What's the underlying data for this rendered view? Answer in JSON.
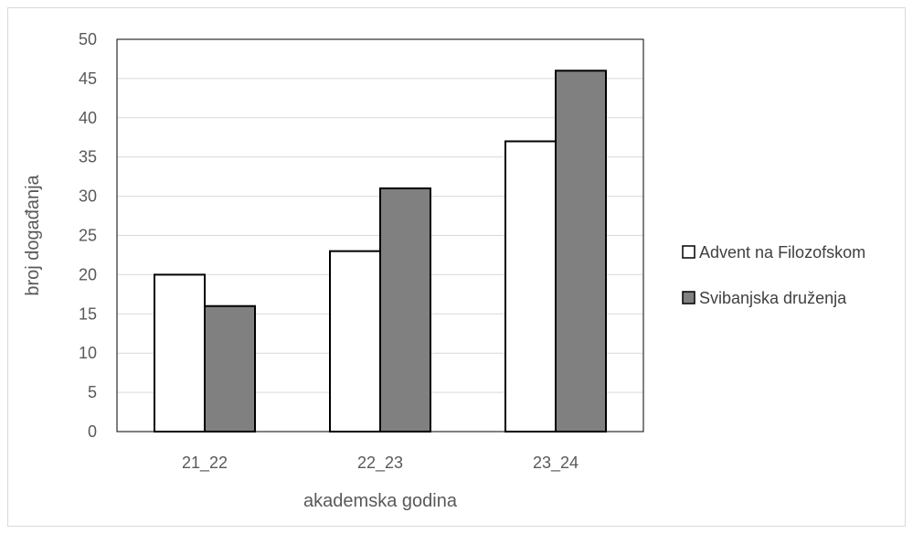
{
  "chart_data": {
    "type": "bar",
    "categories": [
      "21_22",
      "22_23",
      "23_24"
    ],
    "series": [
      {
        "name": "Advent na Filozofskom",
        "values": [
          20,
          23,
          37
        ],
        "color": "#ffffff"
      },
      {
        "name": "Svibanjska druženja",
        "values": [
          16,
          31,
          46
        ],
        "color": "#808080"
      }
    ],
    "xlabel": "akademska godina",
    "ylabel": "broj događanja",
    "ylim": [
      0,
      50
    ],
    "yticks": [
      0,
      5,
      10,
      15,
      20,
      25,
      30,
      35,
      40,
      45,
      50
    ],
    "grid": true,
    "legend_position": "right",
    "colors": {
      "bar_stroke": "#000000",
      "gridline": "#d9d9d9",
      "text": "#595959"
    }
  }
}
